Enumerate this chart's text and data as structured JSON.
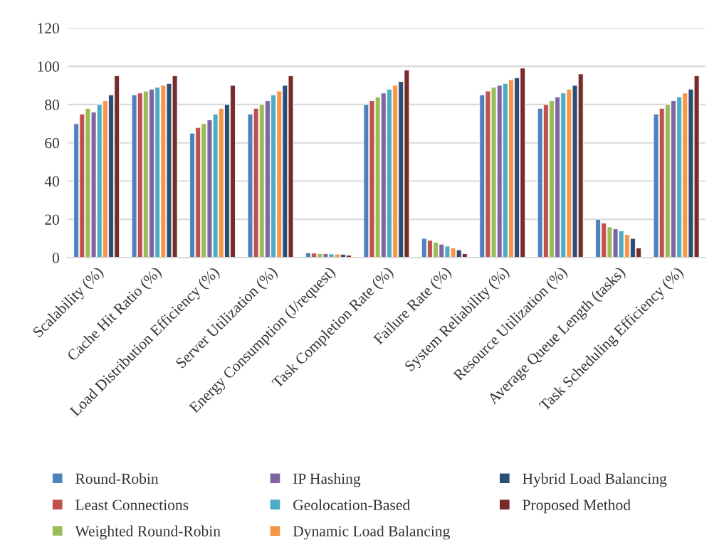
{
  "chart_data": {
    "type": "bar",
    "categories": [
      "Scalability (%)",
      "Cache Hit Ratio (%)",
      "Load Distribution Efficiency (%)",
      "Server Utilization (%)",
      "Energy Consumption (J/request)",
      "Task Completion Rate (%)",
      "Failure Rate (%)",
      "System Reliability (%)",
      "Resource Utilization (%)",
      "Average Queue Length (tasks)",
      "Task Scheduling Efficiency (%)"
    ],
    "series": [
      {
        "name": "Round-Robin",
        "color": "#4f81bd",
        "values": [
          70,
          85,
          65,
          75,
          2.5,
          80,
          10,
          85,
          78,
          20,
          75
        ]
      },
      {
        "name": "Least Connections",
        "color": "#c0504d",
        "values": [
          75,
          86,
          68,
          78,
          2.3,
          82,
          9,
          87,
          80,
          18,
          78
        ]
      },
      {
        "name": "Weighted Round-Robin",
        "color": "#9bbb59",
        "values": [
          78,
          87,
          70,
          80,
          2.1,
          84,
          8,
          89,
          82,
          16,
          80
        ]
      },
      {
        "name": "IP Hashing",
        "color": "#8064a2",
        "values": [
          76,
          88,
          72,
          82,
          2,
          86,
          7,
          90,
          84,
          15,
          82
        ]
      },
      {
        "name": "Geolocation-Based",
        "color": "#4bacc6",
        "values": [
          80,
          89,
          75,
          85,
          1.9,
          88,
          6,
          91,
          86,
          14,
          84
        ]
      },
      {
        "name": "Dynamic Load Balancing",
        "color": "#f79646",
        "values": [
          82,
          90,
          78,
          87,
          1.8,
          90,
          5,
          93,
          88,
          12,
          86
        ]
      },
      {
        "name": "Hybrid Load Balancing",
        "color": "#2c4d75",
        "values": [
          85,
          91,
          80,
          90,
          1.7,
          92,
          4,
          94,
          90,
          10,
          88
        ]
      },
      {
        "name": "Proposed Method",
        "color": "#772c2a",
        "values": [
          95,
          95,
          90,
          95,
          1.2,
          98,
          2,
          99,
          96,
          5,
          95
        ]
      }
    ],
    "ylim": [
      0,
      120
    ],
    "yticks": [
      0,
      20,
      40,
      60,
      80,
      100,
      120
    ],
    "grid": "y",
    "legend": "bottom"
  }
}
